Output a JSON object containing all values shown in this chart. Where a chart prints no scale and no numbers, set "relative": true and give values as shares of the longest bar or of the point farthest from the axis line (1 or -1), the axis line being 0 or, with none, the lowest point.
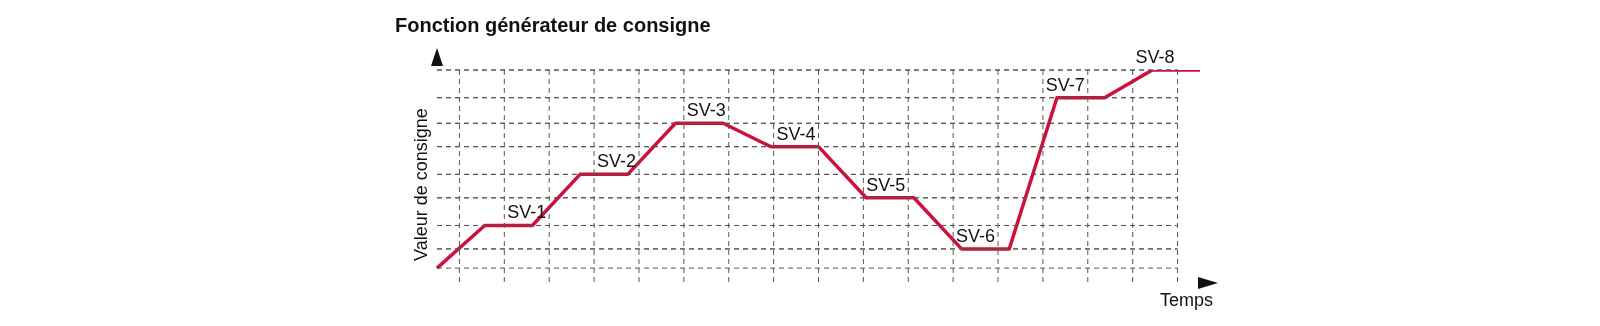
{
  "chart_data": {
    "type": "line",
    "title": "Fonction générateur de consigne",
    "xlabel": "Temps",
    "ylabel": "Valeur de consigne",
    "relative": true,
    "grid": true,
    "marker": "none",
    "line_style": "solid",
    "categories": [
      null,
      null,
      null,
      null,
      null,
      null,
      null,
      null,
      null,
      null,
      null,
      null,
      null,
      null,
      null,
      null,
      null
    ],
    "series": [
      {
        "color": "#d0103a",
        "values": [
          0.07,
          0.27,
          0.27,
          0.51,
          0.51,
          0.75,
          0.75,
          0.64,
          0.64,
          0.4,
          0.4,
          0.16,
          0.16,
          0.87,
          0.87,
          1,
          1
        ]
      }
    ],
    "annotations": [
      "SV-1",
      "SV-2",
      "SV-3",
      "SV-4",
      "SV-5",
      "SV-6",
      "SV-7",
      "SV-8"
    ]
  }
}
